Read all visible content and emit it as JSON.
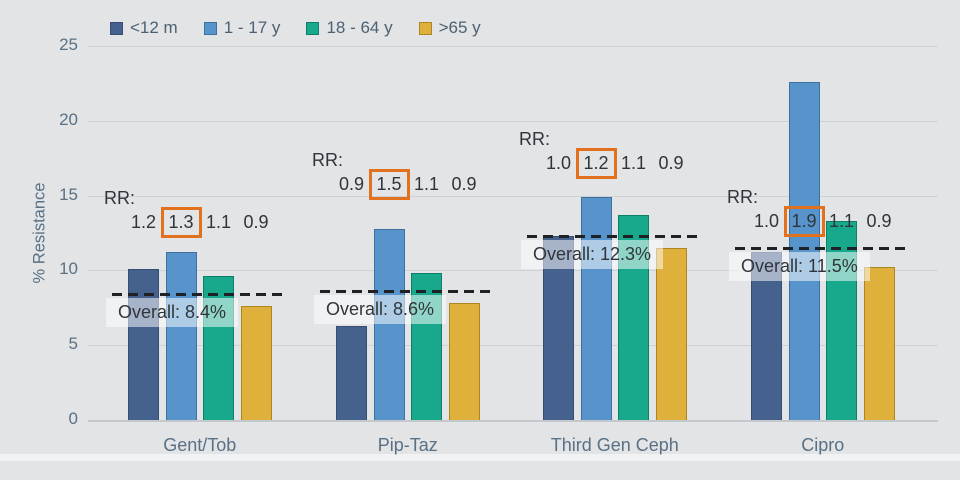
{
  "chart_data": {
    "type": "bar",
    "title": "",
    "ylabel": "% Resistance",
    "ylim": [
      0,
      25
    ],
    "yticks": [
      0,
      5,
      10,
      15,
      20,
      25
    ],
    "grid": "horizontal",
    "legend_position": "top-left",
    "categories": [
      "Gent/Tob",
      "Pip-Taz",
      "Third Gen Ceph",
      "Cipro"
    ],
    "age_groups": [
      {
        "label": "<12 m",
        "color": "#45618d",
        "border": "#374c72"
      },
      {
        "label": "1 - 17 y",
        "color": "#5794cb",
        "border": "#3f6f9e"
      },
      {
        "label": "18 - 64 y",
        "color": "#18a88b",
        "border": "#0f7e68"
      },
      {
        "label": ">65 y",
        "color": "#dfb03c",
        "border": "#ad861f"
      }
    ],
    "series": [
      {
        "name": "<12 m",
        "values": [
          10.1,
          6.3,
          12.3,
          11.2
        ]
      },
      {
        "name": "1 - 17 y",
        "values": [
          11.2,
          12.8,
          14.9,
          22.6
        ]
      },
      {
        "name": "18 - 64 y",
        "values": [
          9.6,
          9.8,
          13.7,
          13.3
        ]
      },
      {
        "name": ">65 y",
        "values": [
          7.6,
          7.8,
          11.5,
          10.2
        ]
      }
    ],
    "annotations": {
      "rr_label": "RR:",
      "highlight_color": "#e2711d",
      "groups": [
        {
          "category": "Gent/Tob",
          "rr": [
            "1.2",
            "1.3",
            "1.1",
            "0.9"
          ],
          "highlighted_index": 1,
          "overall_label": "Overall: 8.4%",
          "overall_value": 8.4
        },
        {
          "category": "Pip-Taz",
          "rr": [
            "0.9",
            "1.5",
            "1.1",
            "0.9"
          ],
          "highlighted_index": 1,
          "overall_label": "Overall: 8.6%",
          "overall_value": 8.6
        },
        {
          "category": "Third Gen Ceph",
          "rr": [
            "1.0",
            "1.2",
            "1.1",
            "0.9"
          ],
          "highlighted_index": 1,
          "overall_label": "Overall: 12.3%",
          "overall_value": 12.3
        },
        {
          "category": "Cipro",
          "rr": [
            "1.0",
            "1.9",
            "1.1",
            "0.9"
          ],
          "highlighted_index": 1,
          "overall_label": "Overall: 11.5%",
          "overall_value": 11.5
        }
      ]
    },
    "colors": {
      "background": "#e2e4e6",
      "axis_text": "#5a7084",
      "annotation_text": "#2f353a",
      "gridline": "#cdd1d5",
      "dashed_line": "#1e2226",
      "overall_label_bg": "rgba(255,255,255,0.52)"
    }
  }
}
